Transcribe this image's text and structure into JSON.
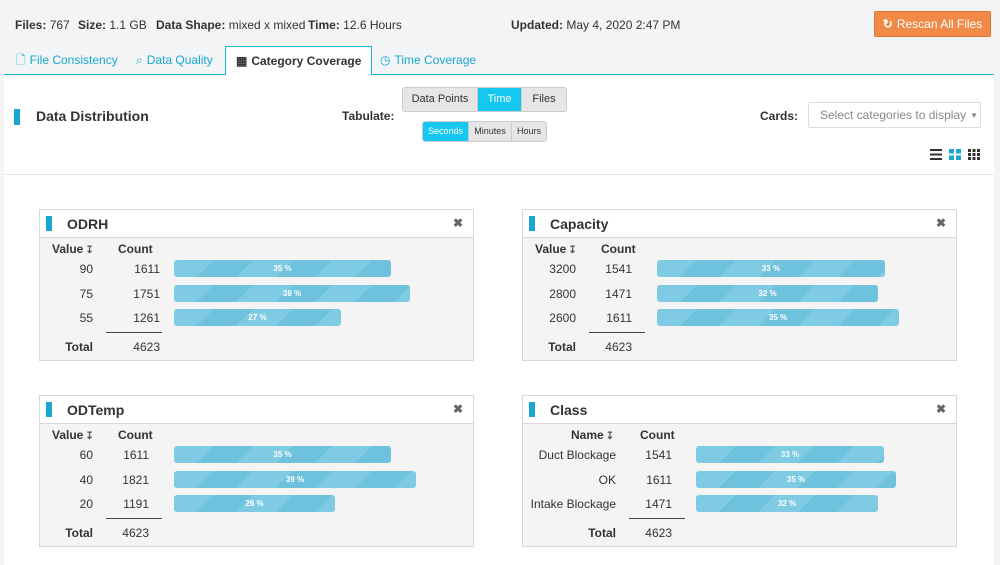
{
  "stats": {
    "files_label": "Files:",
    "files_value": "767",
    "size_label": "Size:",
    "size_value": "1.1 GB",
    "shape_label": "Data Shape:",
    "shape_value": "mixed x mixed",
    "time_label": "Time:",
    "time_value": "12.6 Hours",
    "updated_label": "Updated:",
    "updated_value": "May 4, 2020 2:47 PM"
  },
  "rescan_label": "Rescan All Files",
  "tabs": [
    {
      "label": "File Consistency",
      "icon": "file-icon"
    },
    {
      "label": "Data Quality",
      "icon": "search-icon"
    },
    {
      "label": "Category Coverage",
      "icon": "grid-icon",
      "active": true
    },
    {
      "label": "Time Coverage",
      "icon": "clock-icon"
    }
  ],
  "distribution": {
    "title": "Data Distribution",
    "tabulate_label": "Tabulate:",
    "tabulate_options": [
      "Data Points",
      "Time",
      "Files"
    ],
    "tabulate_selected": "Time",
    "unit_options": [
      "Seconds",
      "Minutes",
      "Hours"
    ],
    "unit_selected": "Seconds",
    "cards_label": "Cards:",
    "cards_placeholder": "Select categories to display"
  },
  "cards": [
    {
      "title": "ODRH",
      "key_header": "Value",
      "count_header": "Count",
      "total_label": "Total",
      "total": "4623",
      "rows": [
        {
          "key": "90",
          "count": "1611",
          "pct": 35,
          "pct_label": "35 %"
        },
        {
          "key": "75",
          "count": "1751",
          "pct": 38,
          "pct_label": "38 %"
        },
        {
          "key": "55",
          "count": "1261",
          "pct": 27,
          "pct_label": "27 %"
        }
      ]
    },
    {
      "title": "Capacity",
      "key_header": "Value",
      "count_header": "Count",
      "total_label": "Total",
      "total": "4623",
      "rows": [
        {
          "key": "3200",
          "count": "1541",
          "pct": 33,
          "pct_label": "33 %"
        },
        {
          "key": "2800",
          "count": "1471",
          "pct": 32,
          "pct_label": "32 %"
        },
        {
          "key": "2600",
          "count": "1611",
          "pct": 35,
          "pct_label": "35 %"
        }
      ]
    },
    {
      "title": "ODTemp",
      "key_header": "Value",
      "count_header": "Count",
      "total_label": "Total",
      "total": "4623",
      "rows": [
        {
          "key": "60",
          "count": "1611",
          "pct": 35,
          "pct_label": "35 %"
        },
        {
          "key": "40",
          "count": "1821",
          "pct": 39,
          "pct_label": "39 %"
        },
        {
          "key": "20",
          "count": "1191",
          "pct": 26,
          "pct_label": "26 %"
        }
      ]
    },
    {
      "title": "Class",
      "key_header": "Name",
      "count_header": "Count",
      "total_label": "Total",
      "total": "4623",
      "rows": [
        {
          "key": "Duct Blockage",
          "count": "1541",
          "pct": 33,
          "pct_label": "33 %"
        },
        {
          "key": "OK",
          "count": "1611",
          "pct": 35,
          "pct_label": "35 %"
        },
        {
          "key": "Intake Blockage",
          "count": "1471",
          "pct": 32,
          "pct_label": "32 %"
        }
      ]
    }
  ]
}
